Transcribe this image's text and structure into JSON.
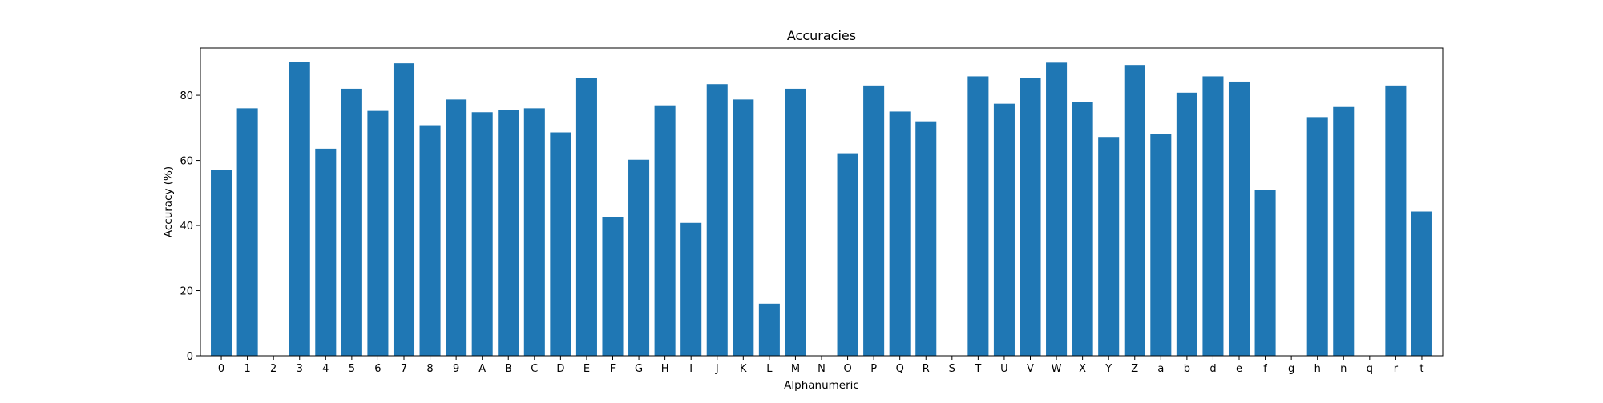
{
  "chart_data": {
    "type": "bar",
    "title": "Accuracies",
    "xlabel": "Alphanumeric",
    "ylabel": "Accuracy (%)",
    "bar_color": "#1f77b4",
    "ylim": [
      0,
      94.5
    ],
    "yticks": [
      0,
      20,
      40,
      60,
      80
    ],
    "grid": false,
    "categories": [
      "0",
      "1",
      "2",
      "3",
      "4",
      "5",
      "6",
      "7",
      "8",
      "9",
      "A",
      "B",
      "C",
      "D",
      "E",
      "F",
      "G",
      "H",
      "I",
      "J",
      "K",
      "L",
      "M",
      "N",
      "O",
      "P",
      "Q",
      "R",
      "S",
      "T",
      "U",
      "V",
      "W",
      "X",
      "Y",
      "Z",
      "a",
      "b",
      "d",
      "e",
      "f",
      "g",
      "h",
      "n",
      "q",
      "r",
      "t"
    ],
    "values": [
      57.0,
      76.0,
      0,
      90.2,
      63.6,
      82.0,
      75.2,
      89.8,
      70.8,
      78.7,
      74.8,
      75.5,
      76.0,
      68.6,
      85.3,
      42.6,
      60.2,
      76.9,
      40.8,
      83.4,
      78.7,
      16.0,
      82.0,
      0,
      62.2,
      83.0,
      75.0,
      72.0,
      0,
      85.8,
      77.4,
      85.4,
      90.0,
      78.0,
      67.2,
      89.3,
      68.2,
      80.8,
      85.8,
      84.2,
      51.0,
      0,
      73.3,
      76.4,
      0,
      83.0,
      44.3
    ]
  }
}
